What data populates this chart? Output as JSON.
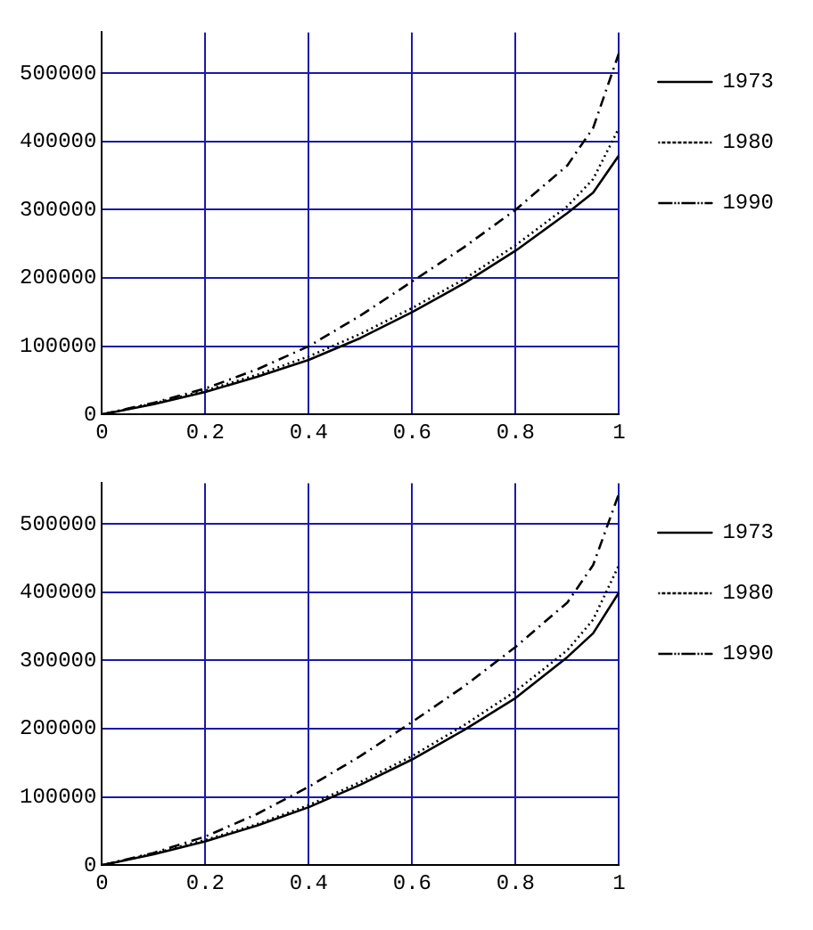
{
  "chart_data": [
    {
      "type": "line",
      "x": [
        0,
        0.1,
        0.2,
        0.3,
        0.4,
        0.5,
        0.6,
        0.7,
        0.8,
        0.9,
        0.95,
        1
      ],
      "xlim": [
        0,
        1
      ],
      "xticks": [
        0,
        0.2,
        0.4,
        0.6,
        0.8,
        1
      ],
      "ylim": [
        0,
        560000
      ],
      "yticks": [
        0,
        100000,
        200000,
        300000,
        400000,
        500000
      ],
      "grid": true,
      "legend": "top right",
      "marker": "none",
      "series": [
        {
          "name": "1973",
          "color": "#000000",
          "line_style": "solid",
          "values": [
            0,
            15000,
            33000,
            55000,
            80000,
            112000,
            150000,
            192000,
            240000,
            295000,
            325000,
            380000
          ]
        },
        {
          "name": "1980",
          "color": "#000000",
          "line_style": "dotted",
          "values": [
            0,
            16000,
            35000,
            58000,
            85000,
            118000,
            156000,
            198000,
            248000,
            305000,
            345000,
            420000
          ]
        },
        {
          "name": "1990",
          "color": "#000000",
          "line_style": "dashed",
          "values": [
            0,
            17000,
            38000,
            66000,
            100000,
            145000,
            195000,
            245000,
            300000,
            365000,
            420000,
            530000
          ]
        }
      ]
    },
    {
      "type": "line",
      "x": [
        0,
        0.1,
        0.2,
        0.3,
        0.4,
        0.5,
        0.6,
        0.7,
        0.8,
        0.9,
        0.95,
        1
      ],
      "xlim": [
        0,
        1
      ],
      "xticks": [
        0,
        0.2,
        0.4,
        0.6,
        0.8,
        1
      ],
      "ylim": [
        0,
        560000
      ],
      "yticks": [
        0,
        100000,
        200000,
        300000,
        400000,
        500000
      ],
      "grid": true,
      "legend": "top right",
      "marker": "none",
      "series": [
        {
          "name": "1973",
          "color": "#000000",
          "line_style": "solid",
          "values": [
            0,
            16000,
            35000,
            58000,
            85000,
            118000,
            155000,
            198000,
            245000,
            305000,
            340000,
            400000
          ]
        },
        {
          "name": "1980",
          "color": "#000000",
          "line_style": "dotted",
          "values": [
            0,
            17000,
            37000,
            60000,
            88000,
            122000,
            160000,
            205000,
            255000,
            315000,
            360000,
            440000
          ]
        },
        {
          "name": "1990",
          "color": "#000000",
          "line_style": "dashed",
          "values": [
            0,
            18000,
            42000,
            75000,
            115000,
            160000,
            210000,
            262000,
            320000,
            385000,
            440000,
            545000
          ]
        }
      ]
    }
  ]
}
